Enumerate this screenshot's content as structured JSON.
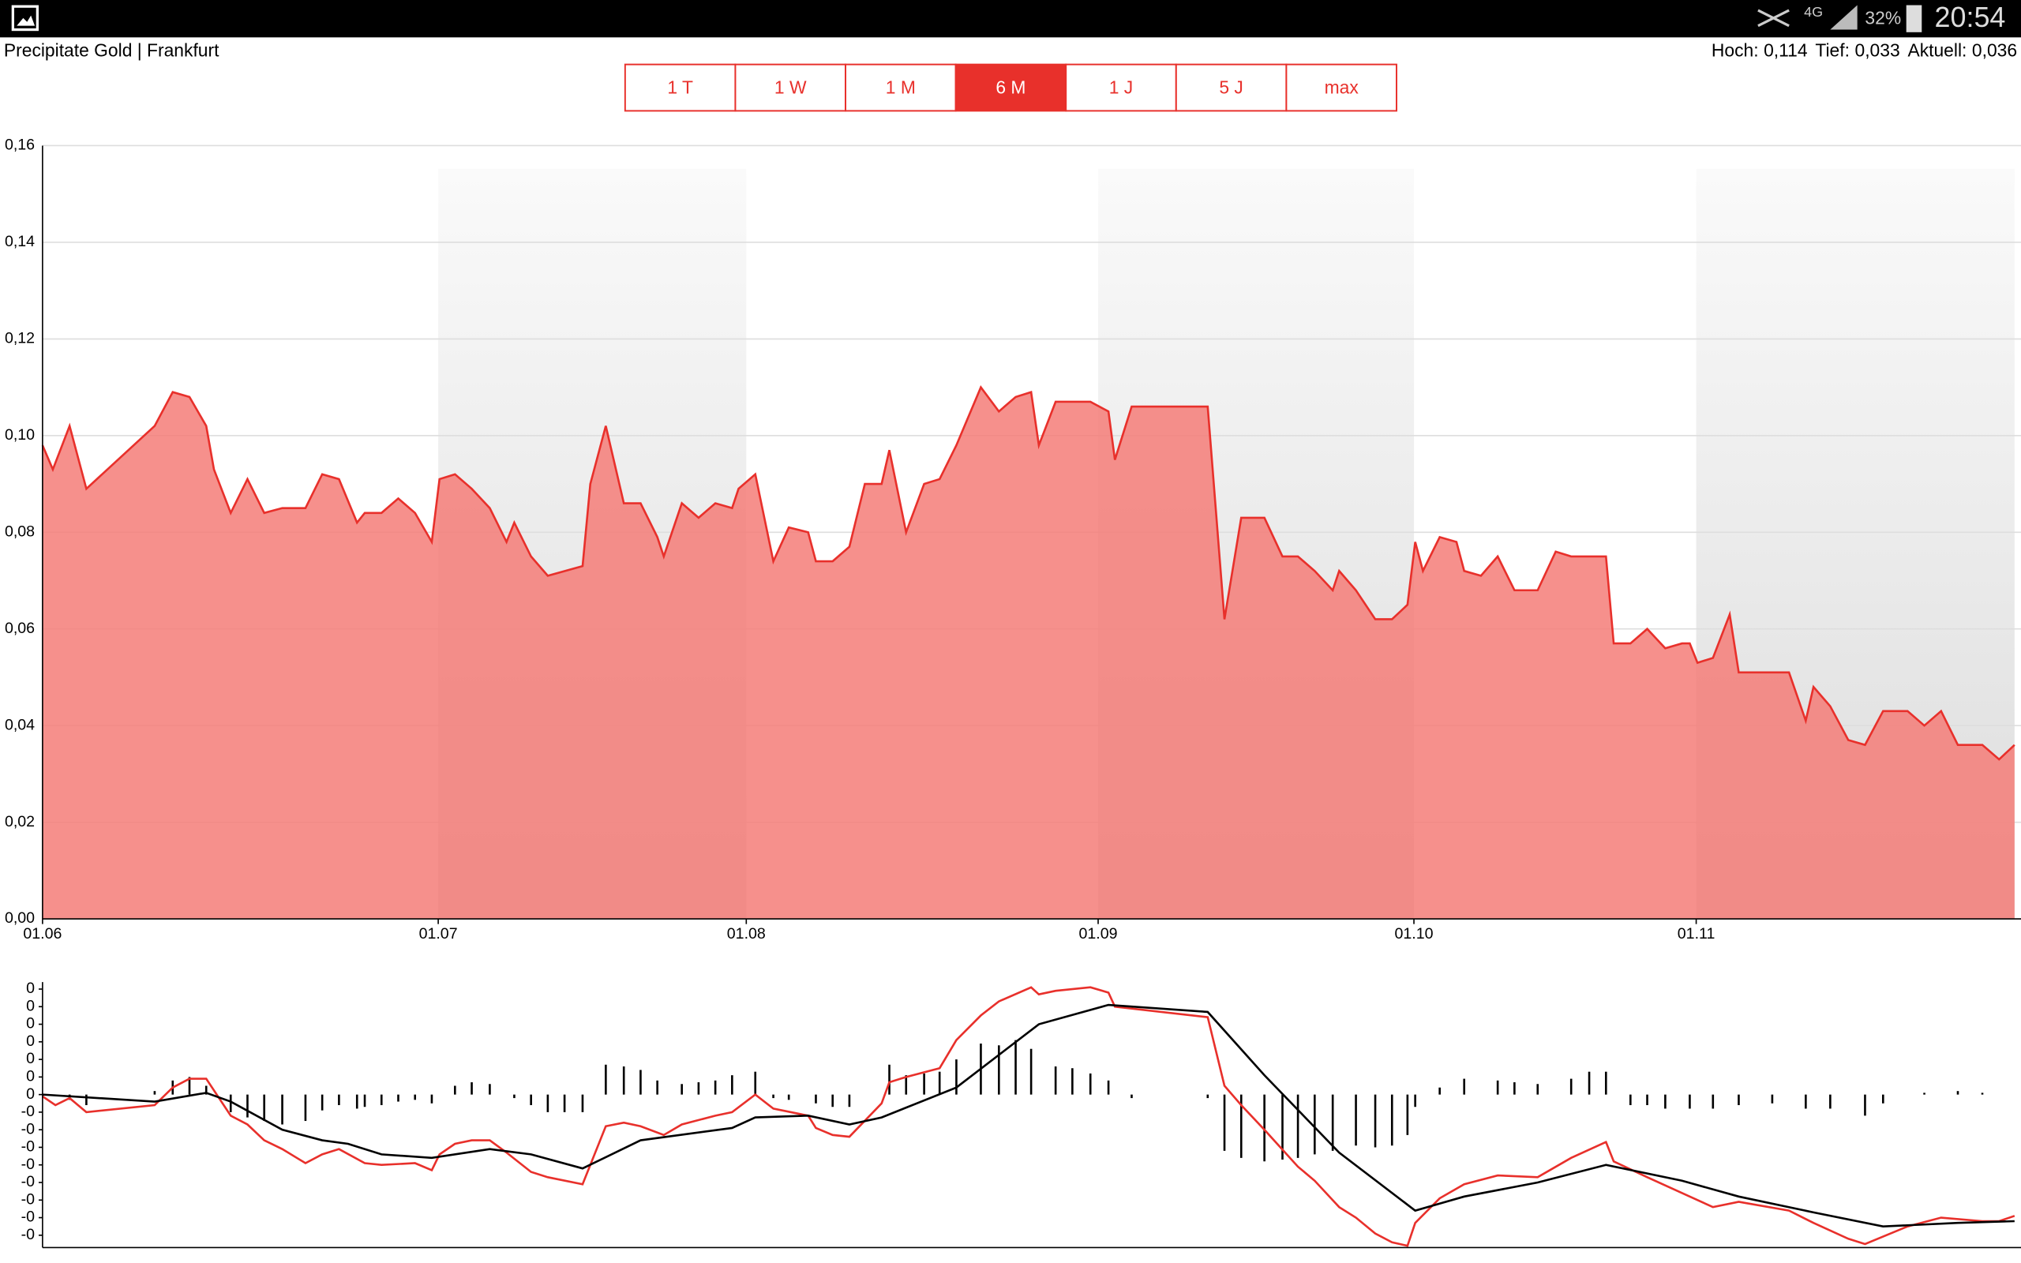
{
  "status_bar": {
    "network": "4G",
    "battery": "32%",
    "time": "20:54"
  },
  "header": {
    "title": "Precipitate Gold | Frankfurt",
    "stats": [
      {
        "label": "Hoch:",
        "value": "0,114"
      },
      {
        "label": "Tief:",
        "value": "0,033"
      },
      {
        "label": "Aktuell:",
        "value": "0,036"
      }
    ]
  },
  "range_buttons": {
    "items": [
      "1 T",
      "1 W",
      "1 M",
      "6 M",
      "1 J",
      "5 J",
      "max"
    ],
    "active_index": 3
  },
  "chart_data": [
    {
      "type": "area",
      "line_color": "#e8302b",
      "fill_color": "#f47c78",
      "grid": true,
      "xlim": [
        0,
        153
      ],
      "ylim": [
        0,
        0.16
      ],
      "xticks": [
        {
          "value": 0,
          "label": "01.06"
        },
        {
          "value": 30.7,
          "label": "01.07"
        },
        {
          "value": 54.6,
          "label": "01.08"
        },
        {
          "value": 81.9,
          "label": "01.09"
        },
        {
          "value": 106.4,
          "label": "01.10"
        },
        {
          "value": 128.3,
          "label": "01.11"
        }
      ],
      "yticks": [
        {
          "value": 0,
          "label": "0,00"
        },
        {
          "value": 0.02,
          "label": "0,02"
        },
        {
          "value": 0.04,
          "label": "0,04"
        },
        {
          "value": 0.06,
          "label": "0,06"
        },
        {
          "value": 0.08,
          "label": "0,08"
        },
        {
          "value": 0.1,
          "label": "0,10"
        },
        {
          "value": 0.12,
          "label": "0,12"
        },
        {
          "value": 0.14,
          "label": "0,14"
        },
        {
          "value": 0.16,
          "label": "0,16"
        }
      ],
      "x": [
        0,
        0.8,
        2.1,
        3.4,
        8.7,
        10.1,
        11.4,
        12.7,
        13.3,
        14.6,
        15.9,
        17.2,
        18.6,
        20.4,
        21.7,
        23,
        24.4,
        25,
        26.3,
        27.6,
        28.9,
        30.2,
        30.8,
        32,
        33.3,
        34.7,
        36,
        36.6,
        37.9,
        39.2,
        41.9,
        42.5,
        43.7,
        45.1,
        46.4,
        47.7,
        48.2,
        49.6,
        50.9,
        52.2,
        53.5,
        54,
        55.3,
        56.7,
        57.9,
        59.4,
        60,
        61.3,
        62.6,
        63.8,
        65.1,
        65.7,
        67,
        68.4,
        69.6,
        70.9,
        72.8,
        74.2,
        75.5,
        76.7,
        77.3,
        78.6,
        81.3,
        82.7,
        83.2,
        84.5,
        90.4,
        91.7,
        93,
        94.8,
        96.2,
        97.4,
        98.7,
        100.1,
        100.6,
        101.9,
        103.4,
        104.7,
        105.9,
        106.5,
        107.1,
        108.4,
        109.7,
        110.3,
        111.6,
        112.9,
        114.2,
        116,
        117.4,
        118.6,
        121.3,
        121.9,
        123.2,
        124.5,
        125.9,
        127.2,
        127.8,
        128.4,
        129.6,
        130.9,
        131.6,
        135.5,
        136.8,
        137.4,
        138.7,
        140.1,
        141.4,
        142.8,
        144.7,
        146,
        147.3,
        148.6,
        150.5,
        151.8,
        153
      ],
      "values": [
        0.098,
        0.093,
        0.102,
        0.089,
        0.102,
        0.109,
        0.108,
        0.102,
        0.093,
        0.084,
        0.091,
        0.084,
        0.085,
        0.085,
        0.092,
        0.091,
        0.082,
        0.084,
        0.084,
        0.087,
        0.084,
        0.078,
        0.091,
        0.092,
        0.089,
        0.085,
        0.078,
        0.082,
        0.075,
        0.071,
        0.073,
        0.09,
        0.102,
        0.086,
        0.086,
        0.079,
        0.075,
        0.086,
        0.083,
        0.086,
        0.085,
        0.089,
        0.092,
        0.074,
        0.081,
        0.08,
        0.074,
        0.074,
        0.077,
        0.09,
        0.09,
        0.097,
        0.08,
        0.09,
        0.091,
        0.098,
        0.11,
        0.105,
        0.108,
        0.109,
        0.098,
        0.107,
        0.107,
        0.105,
        0.095,
        0.106,
        0.106,
        0.062,
        0.083,
        0.083,
        0.075,
        0.075,
        0.072,
        0.068,
        0.072,
        0.068,
        0.062,
        0.062,
        0.065,
        0.078,
        0.072,
        0.079,
        0.078,
        0.072,
        0.071,
        0.075,
        0.068,
        0.068,
        0.076,
        0.075,
        0.075,
        0.057,
        0.057,
        0.06,
        0.056,
        0.057,
        0.057,
        0.053,
        0.054,
        0.063,
        0.051,
        0.051,
        0.041,
        0.048,
        0.044,
        0.037,
        0.036,
        0.043,
        0.043,
        0.04,
        0.043,
        0.036,
        0.036,
        0.033,
        0.036
      ]
    },
    {
      "type": "macd",
      "xlim": [
        0,
        153
      ],
      "ylim": [
        -0.0087,
        0.0064
      ],
      "yticks": [
        {
          "value": 0.006,
          "label": "0"
        },
        {
          "value": 0.005,
          "label": "0"
        },
        {
          "value": 0.004,
          "label": "0"
        },
        {
          "value": 0.003,
          "label": "0"
        },
        {
          "value": 0.002,
          "label": "0"
        },
        {
          "value": 0.001,
          "label": "0"
        },
        {
          "value": 0,
          "label": "0"
        },
        {
          "value": -0.001,
          "label": "-0"
        },
        {
          "value": -0.002,
          "label": "-0"
        },
        {
          "value": -0.003,
          "label": "-0"
        },
        {
          "value": -0.004,
          "label": "-0"
        },
        {
          "value": -0.005,
          "label": "-0"
        },
        {
          "value": -0.006,
          "label": "-0"
        },
        {
          "value": -0.007,
          "label": "-0"
        },
        {
          "value": -0.008,
          "label": "-0"
        }
      ],
      "series": [
        {
          "color": "#e8302b",
          "x": [
            0,
            1,
            2.1,
            3.4,
            8.7,
            10.1,
            11.4,
            12.7,
            14.6,
            15.9,
            17.2,
            18.6,
            20.4,
            21.7,
            23,
            25,
            26.3,
            28.9,
            30.2,
            30.8,
            32,
            33.3,
            34.7,
            36,
            37.9,
            39.2,
            41.9,
            42.5,
            43.7,
            45.1,
            46.4,
            48.2,
            49.6,
            52.2,
            53.5,
            55.3,
            56.7,
            59.4,
            60,
            61.3,
            62.6,
            65.1,
            65.7,
            67,
            69.6,
            70.9,
            72.8,
            74.2,
            76.7,
            77.3,
            78.6,
            81.3,
            82.7,
            83.2,
            90.4,
            91.7,
            93,
            94.8,
            97.4,
            98.7,
            100.6,
            101.9,
            103.4,
            104.7,
            105.9,
            106.5,
            108.4,
            110.3,
            112.9,
            116,
            118.6,
            121.3,
            121.9,
            124.5,
            127.8,
            129.6,
            131.6,
            135.5,
            137.4,
            140.1,
            141.4,
            144.7,
            147.3,
            150.5,
            151.8,
            153
          ],
          "values": [
            -0.0001,
            -0.0006,
            -0.0002,
            -0.001,
            -0.0006,
            0.0004,
            0.0009,
            0.0009,
            -0.0012,
            -0.0017,
            -0.0026,
            -0.0031,
            -0.0039,
            -0.0034,
            -0.0031,
            -0.0039,
            -0.004,
            -0.0039,
            -0.0043,
            -0.0034,
            -0.0028,
            -0.0026,
            -0.0026,
            -0.0033,
            -0.0044,
            -0.0047,
            -0.0051,
            -0.004,
            -0.0018,
            -0.0016,
            -0.0018,
            -0.0023,
            -0.0017,
            -0.0012,
            -0.001,
            0,
            -0.0008,
            -0.0012,
            -0.0019,
            -0.0023,
            -0.0024,
            -0.0005,
            0.0007,
            0.001,
            0.0015,
            0.0031,
            0.0045,
            0.0053,
            0.0061,
            0.0057,
            0.0059,
            0.0061,
            0.0058,
            0.005,
            0.0044,
            0.0005,
            -0.0006,
            -0.002,
            -0.0041,
            -0.0049,
            -0.0064,
            -0.007,
            -0.0079,
            -0.0084,
            -0.0086,
            -0.0073,
            -0.0059,
            -0.0051,
            -0.0046,
            -0.0047,
            -0.0036,
            -0.0027,
            -0.0038,
            -0.0047,
            -0.0058,
            -0.0064,
            -0.0061,
            -0.0066,
            -0.0073,
            -0.0082,
            -0.0085,
            -0.0075,
            -0.007,
            -0.0072,
            -0.0072,
            -0.0069
          ]
        },
        {
          "color": "#000000",
          "x": [
            0,
            8.7,
            12.7,
            14.6,
            18.6,
            21.7,
            23.7,
            26.3,
            30.2,
            34.7,
            37.9,
            41.9,
            46.4,
            53.5,
            55.3,
            59.4,
            62.6,
            65.1,
            70.9,
            77.3,
            82.7,
            90.4,
            94.8,
            100.6,
            106.5,
            110.3,
            116,
            121.3,
            127.2,
            131.6,
            137.4,
            142.8,
            148.6,
            153
          ],
          "values": [
            0,
            -0.0004,
            0.0001,
            -0.0004,
            -0.002,
            -0.0026,
            -0.0028,
            -0.0034,
            -0.0036,
            -0.0031,
            -0.0034,
            -0.0042,
            -0.0026,
            -0.0019,
            -0.0013,
            -0.0012,
            -0.0017,
            -0.0013,
            0.0004,
            0.004,
            0.0051,
            0.0047,
            0.0011,
            -0.0033,
            -0.0066,
            -0.0058,
            -0.005,
            -0.004,
            -0.0049,
            -0.0058,
            -0.0067,
            -0.0075,
            -0.0073,
            -0.0072
          ]
        }
      ],
      "bars": {
        "color": "#000000",
        "x": [
          2.1,
          3.4,
          8.7,
          10.1,
          11.4,
          12.7,
          14.6,
          15.9,
          17.2,
          18.6,
          20.4,
          21.7,
          23,
          24.4,
          25,
          26.3,
          27.6,
          28.9,
          30.2,
          32,
          33.3,
          34.7,
          36.6,
          37.9,
          39.2,
          40.5,
          41.9,
          43.7,
          45.1,
          46.4,
          47.7,
          49.6,
          50.9,
          52.2,
          53.5,
          55.3,
          56.7,
          57.9,
          60,
          61.3,
          62.6,
          65.7,
          67,
          68.4,
          69.6,
          70.9,
          72.8,
          74.2,
          75.5,
          76.7,
          78.6,
          79.9,
          81.3,
          82.7,
          84.5,
          90.4,
          91.7,
          93,
          94.8,
          96.2,
          97.4,
          98.7,
          100.1,
          101.9,
          103.4,
          104.7,
          105.9,
          106.5,
          108.4,
          110.3,
          112.9,
          114.2,
          116,
          118.6,
          120,
          121.3,
          123.2,
          124.5,
          125.9,
          127.8,
          129.6,
          131.6,
          134.2,
          136.8,
          138.7,
          141.4,
          142.8,
          146,
          148.6,
          150.5
        ],
        "values": [
          -0.0003,
          -0.0006,
          0.0002,
          0.0008,
          0.001,
          0.0005,
          -0.001,
          -0.0013,
          -0.0015,
          -0.0017,
          -0.0015,
          -0.0009,
          -0.0006,
          -0.0008,
          -0.0007,
          -0.0006,
          -0.0004,
          -0.0003,
          -0.0005,
          0.0005,
          0.0007,
          0.0006,
          -0.0002,
          -0.0006,
          -0.001,
          -0.001,
          -0.001,
          0.0017,
          0.0016,
          0.0014,
          0.0008,
          0.0006,
          0.0007,
          0.0008,
          0.0011,
          0.0013,
          -0.0002,
          -0.0003,
          -0.0005,
          -0.0007,
          -0.0007,
          0.0017,
          0.0011,
          0.0012,
          0.0013,
          0.002,
          0.0029,
          0.0028,
          0.0031,
          0.0026,
          0.0016,
          0.0015,
          0.0012,
          0.0008,
          -0.0002,
          -0.0002,
          -0.0032,
          -0.0036,
          -0.0038,
          -0.0037,
          -0.0036,
          -0.0034,
          -0.0032,
          -0.0029,
          -0.003,
          -0.0029,
          -0.0023,
          -0.0007,
          0.0004,
          0.0009,
          0.0008,
          0.0007,
          0.0006,
          0.0009,
          0.0013,
          0.0013,
          -0.0006,
          -0.0006,
          -0.0008,
          -0.0008,
          -0.0008,
          -0.0006,
          -0.0005,
          -0.0008,
          -0.0008,
          -0.0012,
          -0.0005,
          0.0001,
          0.0002,
          0.0001
        ]
      }
    }
  ]
}
